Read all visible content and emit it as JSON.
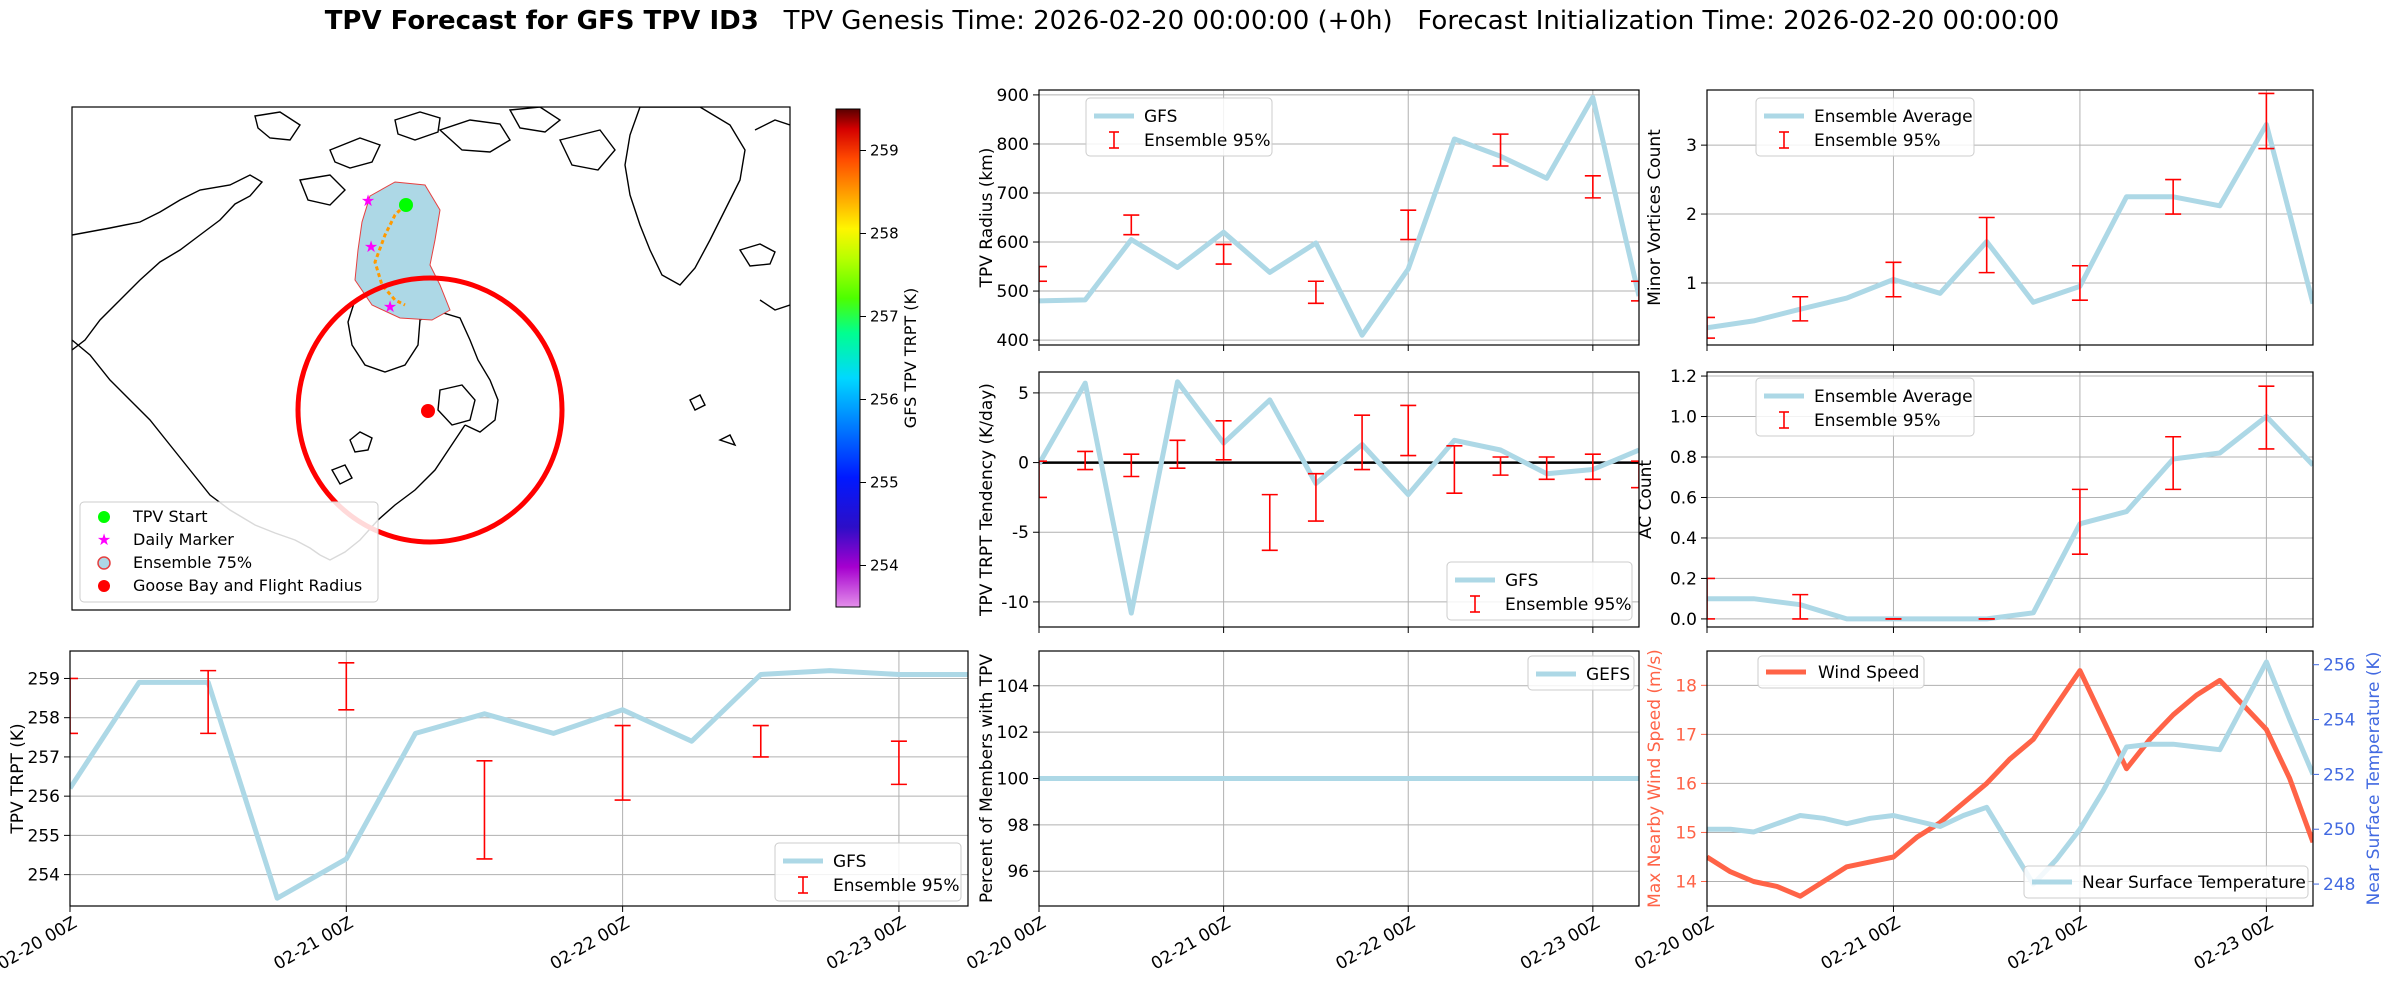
{
  "title": {
    "bold": "TPV Forecast for GFS TPV ID3",
    "genesis": "TPV Genesis Time: 2026-02-20 00:00:00 (+0h)",
    "init": "Forecast Initialization Time: 2026-02-20 00:00:00"
  },
  "colors": {
    "gfs_line": "#add8e6",
    "error_bar": "#ff0000",
    "wind_line": "#ff6347",
    "wind_axis": "#ff6347",
    "temp_axis": "#4169e1",
    "track_fill": "#add8e6",
    "flight_circle": "#ff0000"
  },
  "map": {
    "legend": [
      {
        "label": "TPV Start",
        "marker": "circle",
        "color": "#00ff00"
      },
      {
        "label": "Daily Marker",
        "marker": "star",
        "color": "#ff00ff"
      },
      {
        "label": "Ensemble 75%",
        "marker": "circle-outline",
        "color": "#add8e6"
      },
      {
        "label": "Goose Bay and Flight Radius",
        "marker": "circle",
        "color": "#ff0000"
      }
    ],
    "colorbar": {
      "label": "GFS TPV TRPT (K)",
      "range": [
        253.5,
        259.5
      ],
      "ticks": [
        "254",
        "255",
        "256",
        "257",
        "258",
        "259"
      ],
      "colormap": "gist_ncar_r"
    }
  },
  "chart_data": [
    {
      "id": "radius",
      "type": "line",
      "ylabel": "TPV Radius (km)",
      "ylim": [
        390,
        910
      ],
      "yticks": [
        400,
        500,
        600,
        700,
        800,
        900
      ],
      "x_tick_labels": [
        "02-20 00Z",
        "02-21 00Z",
        "02-22 00Z",
        "02-23 00Z"
      ],
      "x_days": [
        0,
        3.25
      ],
      "legend_position": "upper-left",
      "grid": true,
      "series": [
        {
          "name": "GFS",
          "x": [
            0,
            0.25,
            0.5,
            0.75,
            1.0,
            1.25,
            1.5,
            1.75,
            2.0,
            2.25,
            2.5,
            2.75,
            3.0,
            3.25
          ],
          "values": [
            480,
            482,
            605,
            548,
            620,
            538,
            598,
            410,
            545,
            810,
            775,
            730,
            895,
            490
          ]
        }
      ],
      "errorbars": {
        "name": "Ensemble 95%",
        "x": [
          0,
          0.5,
          1.0,
          1.5,
          2.0,
          2.5,
          3.0,
          3.25
        ],
        "low": [
          520,
          615,
          555,
          475,
          605,
          755,
          690,
          480
        ],
        "high": [
          550,
          655,
          595,
          520,
          665,
          820,
          735,
          520
        ]
      }
    },
    {
      "id": "minor",
      "type": "line",
      "ylabel": "Minor Vortices Count",
      "ylim": [
        0.1,
        3.8
      ],
      "yticks": [
        1,
        2,
        3
      ],
      "x_tick_labels": [
        "02-20 00Z",
        "02-21 00Z",
        "02-22 00Z",
        "02-23 00Z"
      ],
      "x_days": [
        0,
        3.25
      ],
      "legend_position": "upper-left",
      "grid": true,
      "series": [
        {
          "name": "Ensemble Average",
          "x": [
            0,
            0.25,
            0.5,
            0.75,
            1.0,
            1.25,
            1.5,
            1.75,
            2.0,
            2.25,
            2.5,
            2.75,
            3.0,
            3.25
          ],
          "values": [
            0.35,
            0.45,
            0.62,
            0.78,
            1.05,
            0.85,
            1.6,
            0.72,
            0.95,
            2.25,
            2.25,
            2.12,
            3.3,
            0.7
          ]
        }
      ],
      "errorbars": {
        "name": "Ensemble 95%",
        "x": [
          0,
          0.5,
          1.0,
          1.5,
          2.0,
          2.5,
          3.0
        ],
        "low": [
          0.2,
          0.45,
          0.8,
          1.15,
          0.75,
          2.0,
          2.95
        ],
        "high": [
          0.5,
          0.8,
          1.3,
          1.95,
          1.25,
          2.5,
          3.75
        ]
      }
    },
    {
      "id": "tendency",
      "type": "line",
      "ylabel": "TPV TRPT Tendency (K/day)",
      "ylim": [
        -11.8,
        6.5
      ],
      "yticks": [
        -10,
        -5,
        0,
        5
      ],
      "x_tick_labels": [
        "02-20 00Z",
        "02-21 00Z",
        "02-22 00Z",
        "02-23 00Z"
      ],
      "x_days": [
        0,
        3.25
      ],
      "legend_position": "lower-right",
      "grid": true,
      "zero_line": true,
      "series": [
        {
          "name": "GFS",
          "x": [
            0,
            0.25,
            0.5,
            0.75,
            1.0,
            1.25,
            1.5,
            1.75,
            2.0,
            2.25,
            2.5,
            2.75,
            3.0,
            3.25
          ],
          "values": [
            -0.1,
            5.7,
            -10.8,
            5.8,
            1.4,
            4.5,
            -1.5,
            1.3,
            -2.3,
            1.6,
            0.9,
            -0.8,
            -0.5,
            0.9
          ]
        }
      ],
      "errorbars": {
        "name": "Ensemble 95%",
        "x": [
          0,
          0.25,
          0.5,
          0.75,
          1.0,
          1.25,
          1.5,
          1.75,
          2.0,
          2.25,
          2.5,
          2.75,
          3.0,
          3.25
        ],
        "low": [
          -2.5,
          -0.5,
          -1.0,
          -0.4,
          0.2,
          -6.3,
          -4.2,
          -0.5,
          0.5,
          -2.2,
          -0.9,
          -1.2,
          -1.2,
          -1.8
        ],
        "high": [
          0.1,
          0.8,
          0.6,
          1.6,
          3.0,
          -2.3,
          -0.8,
          3.4,
          4.1,
          1.2,
          0.4,
          0.4,
          0.6,
          0.1
        ]
      }
    },
    {
      "id": "ac",
      "type": "line",
      "ylabel": "AC Count",
      "ylim": [
        -0.04,
        1.22
      ],
      "yticks": [
        0.0,
        0.2,
        0.4,
        0.6,
        0.8,
        1.0,
        1.2
      ],
      "x_tick_labels": [
        "02-20 00Z",
        "02-21 00Z",
        "02-22 00Z",
        "02-23 00Z"
      ],
      "x_days": [
        0,
        3.25
      ],
      "legend_position": "upper-left",
      "grid": true,
      "series": [
        {
          "name": "Ensemble Average",
          "x": [
            0,
            0.25,
            0.5,
            0.75,
            1.0,
            1.25,
            1.5,
            1.75,
            2.0,
            2.25,
            2.5,
            2.75,
            3.0,
            3.25
          ],
          "values": [
            0.1,
            0.1,
            0.07,
            0.0,
            0.0,
            0.0,
            0.0,
            0.03,
            0.47,
            0.53,
            0.79,
            0.82,
            1.0,
            0.76
          ]
        }
      ],
      "errorbars": {
        "name": "Ensemble 95%",
        "x": [
          0,
          0.5,
          1.0,
          1.5,
          2.0,
          2.5,
          3.0
        ],
        "low": [
          0.0,
          0.0,
          0.0,
          0.0,
          0.32,
          0.64,
          0.84
        ],
        "high": [
          0.2,
          0.12,
          0.0,
          0.0,
          0.64,
          0.9,
          1.15
        ]
      }
    },
    {
      "id": "trpt",
      "type": "line",
      "ylabel": "TPV TRPT (K)",
      "ylim": [
        253.2,
        259.7
      ],
      "yticks": [
        254,
        255,
        256,
        257,
        258,
        259
      ],
      "x_tick_labels": [
        "02-20 00Z",
        "02-21 00Z",
        "02-22 00Z",
        "02-23 00Z"
      ],
      "x_days": [
        0,
        3.25
      ],
      "legend_position": "lower-right",
      "grid": true,
      "series": [
        {
          "name": "GFS",
          "x": [
            0,
            0.25,
            0.5,
            0.75,
            1.0,
            1.25,
            1.5,
            1.75,
            2.0,
            2.25,
            2.5,
            2.75,
            3.0,
            3.25
          ],
          "values": [
            256.2,
            258.9,
            258.9,
            253.4,
            254.4,
            257.6,
            258.1,
            257.6,
            258.2,
            257.4,
            259.1,
            259.2,
            259.1,
            259.1
          ]
        }
      ],
      "errorbars": {
        "name": "Ensemble 95%",
        "x": [
          0,
          0.5,
          1.0,
          1.5,
          2.0,
          2.5,
          3.0
        ],
        "low": [
          257.6,
          257.6,
          258.2,
          254.4,
          255.9,
          257.0,
          256.3
        ],
        "high": [
          259.0,
          259.2,
          259.4,
          256.9,
          257.8,
          257.8,
          257.4
        ]
      }
    },
    {
      "id": "members",
      "type": "line",
      "ylabel": "Percent of Members with TPV",
      "ylim": [
        94.5,
        105.5
      ],
      "yticks": [
        96,
        98,
        100,
        102,
        104
      ],
      "x_tick_labels": [
        "02-20 00Z",
        "02-21 00Z",
        "02-22 00Z",
        "02-23 00Z"
      ],
      "x_days": [
        0,
        3.25
      ],
      "legend_position": "upper-right",
      "grid": true,
      "series": [
        {
          "name": "GEFS",
          "x": [
            0,
            3.25
          ],
          "values": [
            100,
            100
          ]
        }
      ]
    },
    {
      "id": "wind",
      "type": "line",
      "ylabel": "Max Nearby Wind Speed (m/s)",
      "ylim": [
        13.5,
        18.7
      ],
      "yticks": [
        14,
        15,
        16,
        17,
        18
      ],
      "y2label": "Near Surface Temperature (K)",
      "y2lim": [
        247.2,
        256.5
      ],
      "y2ticks": [
        248,
        250,
        252,
        254,
        256
      ],
      "x_tick_labels": [
        "02-20 00Z",
        "02-21 00Z",
        "02-22 00Z",
        "02-23 00Z"
      ],
      "x_days": [
        0,
        3.25
      ],
      "grid": true,
      "series": [
        {
          "name": "Wind Speed",
          "axis": "left",
          "x": [
            0,
            0.125,
            0.25,
            0.375,
            0.5,
            0.625,
            0.75,
            0.875,
            1.0,
            1.125,
            1.25,
            1.375,
            1.5,
            1.625,
            1.75,
            1.875,
            2.0,
            2.125,
            2.25,
            2.375,
            2.5,
            2.625,
            2.75,
            2.875,
            3.0,
            3.125,
            3.25
          ],
          "values": [
            14.5,
            14.2,
            14.0,
            13.9,
            13.7,
            14.0,
            14.3,
            14.4,
            14.5,
            14.9,
            15.2,
            15.6,
            16.0,
            16.5,
            16.9,
            17.6,
            18.3,
            17.3,
            16.3,
            16.9,
            17.4,
            17.8,
            18.1,
            17.6,
            17.1,
            16.1,
            14.8
          ]
        },
        {
          "name": "Near Surface Temperature",
          "axis": "right",
          "x": [
            0,
            0.125,
            0.25,
            0.375,
            0.5,
            0.625,
            0.75,
            0.875,
            1.0,
            1.125,
            1.25,
            1.375,
            1.5,
            1.625,
            1.75,
            1.875,
            2.0,
            2.125,
            2.25,
            2.375,
            2.5,
            2.625,
            2.75,
            2.875,
            3.0,
            3.125,
            3.25
          ],
          "values": [
            250.0,
            250.0,
            249.9,
            250.2,
            250.5,
            250.4,
            250.2,
            250.4,
            250.5,
            250.3,
            250.1,
            250.5,
            250.8,
            249.4,
            248.0,
            248.9,
            250.0,
            251.4,
            253.0,
            253.1,
            253.1,
            253.0,
            252.9,
            254.5,
            256.1,
            254.0,
            252.0
          ]
        }
      ]
    }
  ]
}
